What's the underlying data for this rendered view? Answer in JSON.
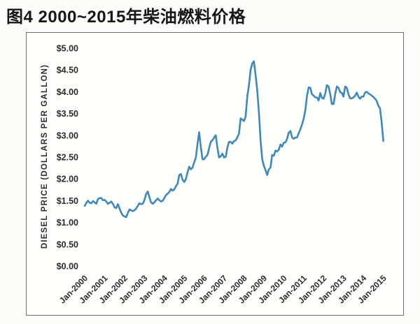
{
  "page": {
    "title": "图4  2000~2015年柴油燃料价格"
  },
  "colors": {
    "line": "#3e88bb",
    "frame": "#6e6e6e",
    "text": "#2b2b2b",
    "background": "#fcfcfb"
  },
  "chart_data": {
    "type": "line",
    "title": "图4 2000~2015年柴油燃料价格",
    "xlabel": "",
    "ylabel": "DIESEL PRICE (DOLLARS PER GALLON)",
    "ylim": [
      0,
      5
    ],
    "grid": false,
    "legend": "none",
    "y_ticks": [
      {
        "value": 0.0,
        "label": "$0.00"
      },
      {
        "value": 0.5,
        "label": "$0.50"
      },
      {
        "value": 1.0,
        "label": "$1.00"
      },
      {
        "value": 1.5,
        "label": "$1.50"
      },
      {
        "value": 2.0,
        "label": "$2.00"
      },
      {
        "value": 2.5,
        "label": "$2.50"
      },
      {
        "value": 3.0,
        "label": "$3.00"
      },
      {
        "value": 3.5,
        "label": "$3.50"
      },
      {
        "value": 4.0,
        "label": "$4.00"
      },
      {
        "value": 4.5,
        "label": "$4.50"
      },
      {
        "value": 5.0,
        "label": "$5.00"
      }
    ],
    "x_ticks": [
      {
        "month_index": 0,
        "label": "Jan-2000"
      },
      {
        "month_index": 12,
        "label": "Jan-2001"
      },
      {
        "month_index": 24,
        "label": "Jan-2002"
      },
      {
        "month_index": 36,
        "label": "Jan-2003"
      },
      {
        "month_index": 48,
        "label": "Jan-2004"
      },
      {
        "month_index": 60,
        "label": "Jan-2005"
      },
      {
        "month_index": 72,
        "label": "Jan-2006"
      },
      {
        "month_index": 84,
        "label": "Jan-2007"
      },
      {
        "month_index": 96,
        "label": "Jan-2008"
      },
      {
        "month_index": 108,
        "label": "Jan-2009"
      },
      {
        "month_index": 120,
        "label": "Jan-2010"
      },
      {
        "month_index": 132,
        "label": "Jan-2011"
      },
      {
        "month_index": 144,
        "label": "Jan-2012"
      },
      {
        "month_index": 156,
        "label": "Jan-2013"
      },
      {
        "month_index": 168,
        "label": "Jan-2014"
      },
      {
        "month_index": 180,
        "label": "Jan-2015"
      }
    ],
    "series": [
      {
        "start": "Jan-2000",
        "end": "Jan-2015",
        "interval": "monthly",
        "unit": "dollars per gallon",
        "values": [
          1.38,
          1.45,
          1.5,
          1.45,
          1.44,
          1.49,
          1.46,
          1.43,
          1.54,
          1.56,
          1.56,
          1.51,
          1.52,
          1.48,
          1.43,
          1.45,
          1.48,
          1.43,
          1.35,
          1.33,
          1.42,
          1.32,
          1.23,
          1.16,
          1.14,
          1.12,
          1.22,
          1.3,
          1.28,
          1.26,
          1.28,
          1.32,
          1.38,
          1.44,
          1.42,
          1.43,
          1.51,
          1.65,
          1.71,
          1.58,
          1.46,
          1.43,
          1.46,
          1.51,
          1.55,
          1.51,
          1.48,
          1.5,
          1.56,
          1.63,
          1.66,
          1.7,
          1.77,
          1.73,
          1.76,
          1.83,
          1.89,
          2.09,
          2.11,
          1.98,
          1.93,
          2.0,
          2.15,
          2.28,
          2.22,
          2.26,
          2.38,
          2.49,
          2.81,
          3.07,
          2.73,
          2.45,
          2.45,
          2.51,
          2.55,
          2.71,
          2.85,
          2.89,
          2.95,
          3.0,
          2.72,
          2.49,
          2.52,
          2.58,
          2.49,
          2.51,
          2.72,
          2.85,
          2.85,
          2.81,
          2.87,
          2.88,
          2.95,
          3.04,
          3.39,
          3.36,
          3.33,
          3.43,
          3.9,
          4.14,
          4.5,
          4.65,
          4.7,
          4.39,
          4.03,
          3.52,
          2.89,
          2.45,
          2.3,
          2.2,
          2.09,
          2.22,
          2.26,
          2.55,
          2.53,
          2.65,
          2.63,
          2.67,
          2.79,
          2.74,
          2.83,
          2.84,
          2.92,
          3.06,
          3.1,
          2.95,
          2.92,
          2.95,
          2.95,
          3.05,
          3.14,
          3.25,
          3.38,
          3.58,
          3.91,
          4.1,
          4.09,
          3.94,
          3.91,
          3.87,
          3.87,
          3.8,
          3.97,
          3.86,
          3.84,
          3.96,
          4.15,
          4.12,
          3.94,
          3.72,
          3.72,
          3.95,
          4.12,
          4.09,
          3.99,
          3.97,
          3.89,
          4.12,
          4.09,
          3.94,
          3.85,
          3.85,
          3.87,
          3.91,
          3.98,
          3.89,
          3.84,
          3.89,
          3.89,
          3.98,
          4.0,
          3.96,
          3.94,
          3.91,
          3.88,
          3.84,
          3.79,
          3.68,
          3.62,
          3.3,
          2.87
        ]
      }
    ]
  }
}
